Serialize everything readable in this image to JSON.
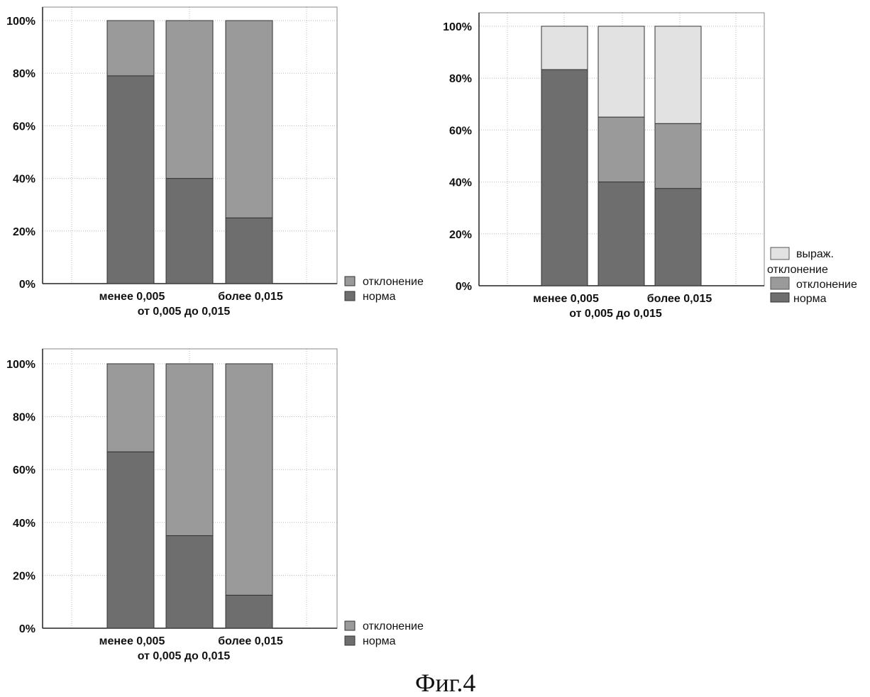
{
  "figure_caption": "Фиг.4",
  "colors": {
    "norma": "#6e6e6e",
    "otklonenie": "#9a9a9a",
    "vyrazh": "#e2e2e2",
    "grid": "#bbbbbb"
  },
  "chart_data": [
    {
      "type": "bar",
      "stacked": true,
      "categories": [
        "менее 0,005",
        "от 0,005 до 0,015",
        "более 0,015"
      ],
      "series": [
        {
          "name": "норма",
          "values": [
            79,
            40,
            25
          ]
        },
        {
          "name": "отклонение",
          "values": [
            21,
            60,
            75
          ]
        }
      ],
      "yticks": [
        "0%",
        "20%",
        "40%",
        "60%",
        "80%",
        "100%"
      ],
      "ylim": [
        0,
        100
      ],
      "legend": [
        "отклонение",
        "норма"
      ],
      "legend_position": "bottom-right",
      "grid": true
    },
    {
      "type": "bar",
      "stacked": true,
      "categories": [
        "менее 0,005",
        "от 0,005 до 0,015",
        "более 0,015"
      ],
      "series": [
        {
          "name": "норма",
          "values": [
            83.3,
            40,
            37.5
          ]
        },
        {
          "name": "отклонение",
          "values": [
            0,
            25,
            25
          ]
        },
        {
          "name": "выраж. отклонение",
          "values": [
            16.7,
            35,
            37.5
          ]
        }
      ],
      "yticks": [
        "0%",
        "20%",
        "40%",
        "60%",
        "80%",
        "100%"
      ],
      "ylim": [
        0,
        100
      ],
      "legend": [
        "выраж.",
        "отклонение",
        "отклонение",
        "норма"
      ],
      "legend_position": "bottom-right",
      "grid": true
    },
    {
      "type": "bar",
      "stacked": true,
      "categories": [
        "менее 0,005",
        "от 0,005 до 0,015",
        "более 0,015"
      ],
      "series": [
        {
          "name": "норма",
          "values": [
            66.7,
            35,
            12.5
          ]
        },
        {
          "name": "отклонение",
          "values": [
            33.3,
            65,
            87.5
          ]
        }
      ],
      "yticks": [
        "0%",
        "20%",
        "40%",
        "60%",
        "80%",
        "100%"
      ],
      "ylim": [
        0,
        100
      ],
      "legend": [
        "отклонение",
        "норма"
      ],
      "legend_position": "bottom-right",
      "grid": true
    }
  ]
}
